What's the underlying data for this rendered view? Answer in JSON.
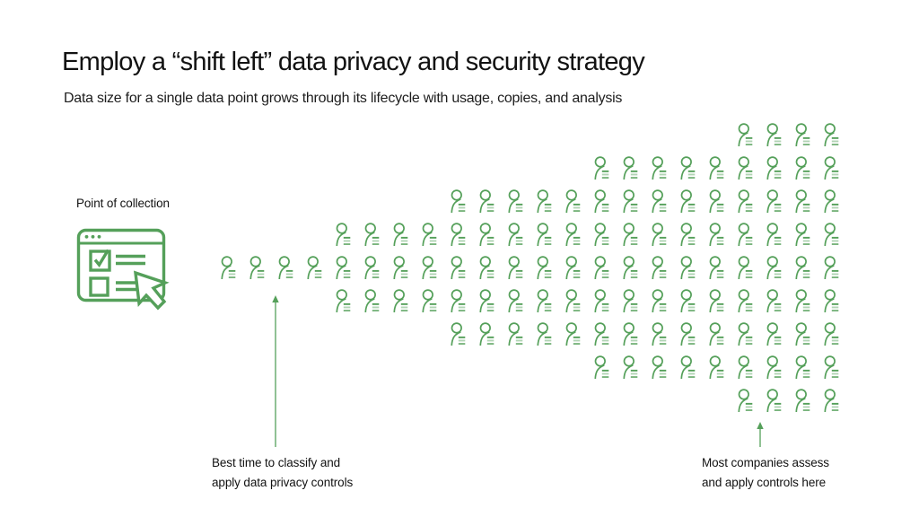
{
  "slide": {
    "title": "Employ a “shift left” data privacy and security strategy",
    "subtitle": "Data size for a single data point grows through its lifecycle with usage, copies, and analysis"
  },
  "collection_point": {
    "label": "Point of collection"
  },
  "icon_grid": {
    "icon": "person-record-icon",
    "alignment": "right",
    "rows": [
      4,
      9,
      14,
      18,
      22,
      18,
      14,
      9,
      4
    ]
  },
  "annotations": {
    "left": {
      "line1": "Best time to classify and",
      "line2": "apply data privacy controls"
    },
    "right": {
      "line1": "Most companies assess",
      "line2": "and apply controls here"
    }
  },
  "colors": {
    "green": "#55a05a",
    "text": "#151515",
    "background": "#ffffff"
  }
}
